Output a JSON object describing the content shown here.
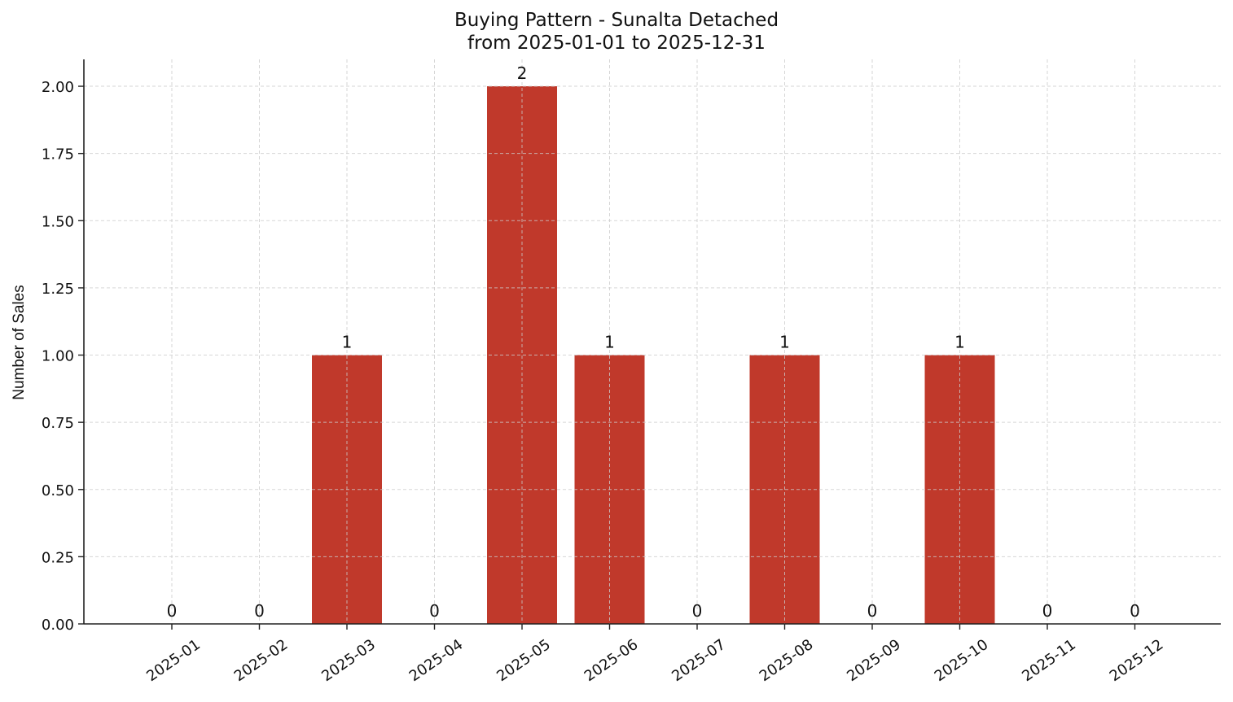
{
  "chart_data": {
    "type": "bar",
    "title": "Buying Pattern - Sunalta Detached",
    "subtitle": "from 2025-01-01 to 2025-12-31",
    "xlabel": "",
    "ylabel": "Number of Sales",
    "categories": [
      "2025-01",
      "2025-02",
      "2025-03",
      "2025-04",
      "2025-05",
      "2025-06",
      "2025-07",
      "2025-08",
      "2025-09",
      "2025-10",
      "2025-11",
      "2025-12"
    ],
    "values": [
      0,
      0,
      1,
      0,
      2,
      1,
      0,
      1,
      0,
      1,
      0,
      0
    ],
    "bar_labels": [
      "0",
      "0",
      "1",
      "0",
      "2",
      "1",
      "0",
      "1",
      "0",
      "1",
      "0",
      "0"
    ],
    "ylim": [
      0,
      2.1
    ],
    "yticks": [
      0,
      0.25,
      0.5,
      0.75,
      1.0,
      1.25,
      1.5,
      1.75,
      2.0
    ],
    "ytick_labels": [
      "0.00",
      "0.25",
      "0.50",
      "0.75",
      "1.00",
      "1.25",
      "1.50",
      "1.75",
      "2.00"
    ],
    "grid": true,
    "legend": null,
    "bar_color": "#c0392b"
  }
}
